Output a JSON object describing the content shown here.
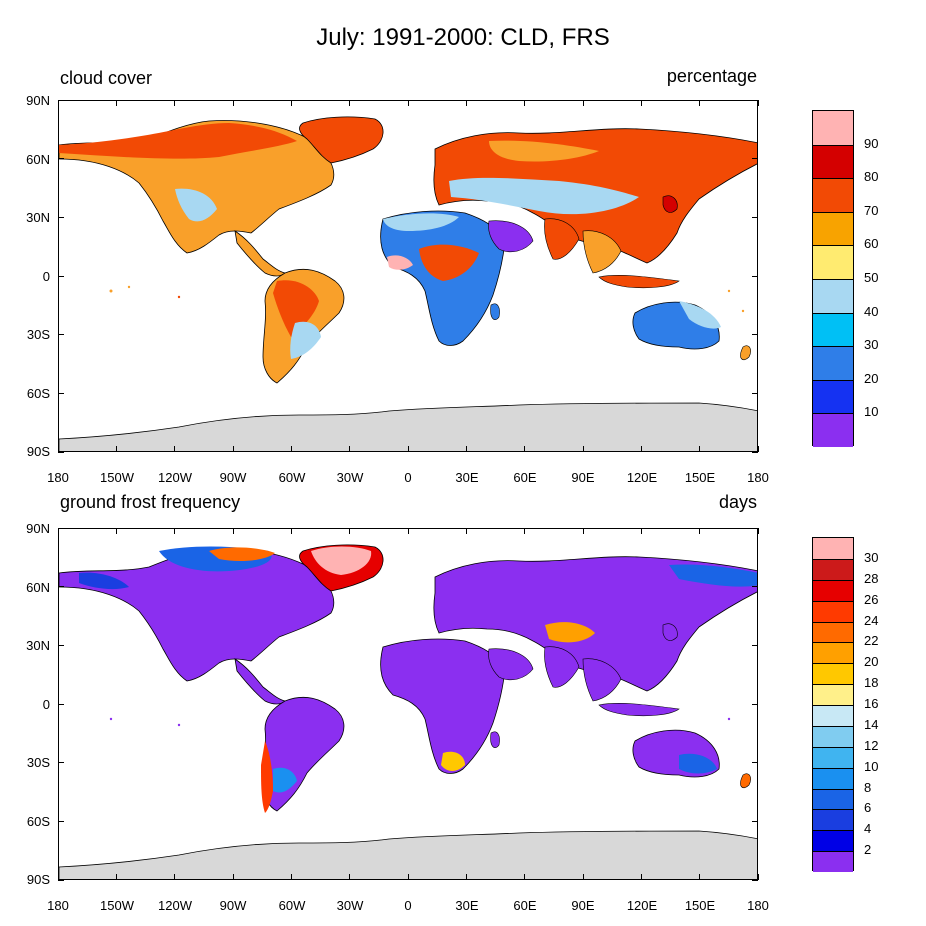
{
  "title": "July: 1991-2000: CLD, FRS",
  "lat_labels": [
    "90N",
    "60N",
    "30N",
    "0",
    "30S",
    "60S",
    "90S"
  ],
  "lon_labels": [
    "180",
    "150W",
    "120W",
    "90W",
    "60W",
    "30W",
    "0",
    "30E",
    "60E",
    "90E",
    "120E",
    "150E",
    "180"
  ],
  "panels": [
    {
      "left_label": "cloud cover",
      "right_label": "percentage",
      "colorbar": {
        "colors": [
          "#ffb3b3",
          "#d40000",
          "#f24a05",
          "#f8a300",
          "#ffeb70",
          "#a8d8f2",
          "#00c0f5",
          "#2f7ee8",
          "#1532f2",
          "#8b2ff0"
        ],
        "labels": [
          "90",
          "80",
          "70",
          "60",
          "50",
          "40",
          "30",
          "20",
          "10"
        ]
      }
    },
    {
      "left_label": "ground frost frequency",
      "right_label": "days",
      "colorbar": {
        "colors": [
          "#ffb3b3",
          "#cc1a1a",
          "#e60000",
          "#ff3a00",
          "#ff6a00",
          "#ffa000",
          "#ffc800",
          "#fff08a",
          "#c8e8f5",
          "#80ccf0",
          "#40b4f0",
          "#1a90f0",
          "#1a64e6",
          "#1a3ee0",
          "#0000e6",
          "#8b2ff0"
        ],
        "labels": [
          "30",
          "28",
          "26",
          "24",
          "22",
          "20",
          "18",
          "16",
          "14",
          "12",
          "10",
          "8",
          "6",
          "4",
          "2"
        ]
      }
    }
  ]
}
